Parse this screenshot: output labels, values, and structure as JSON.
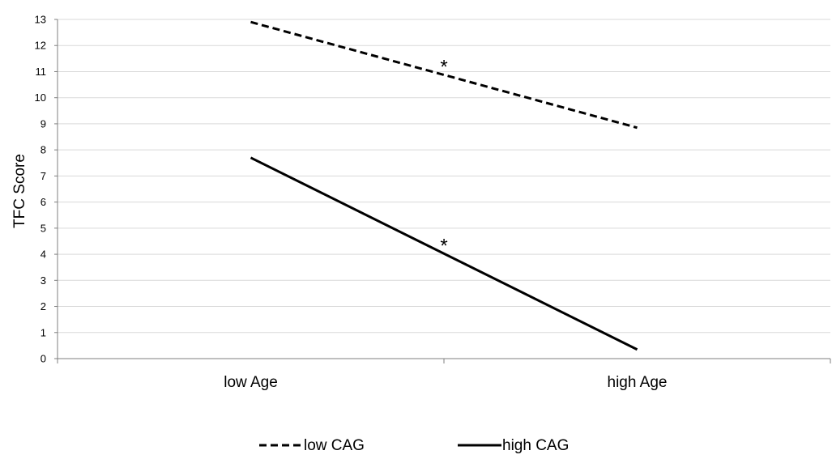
{
  "chart_data": {
    "type": "line",
    "title": "",
    "xlabel": "",
    "ylabel": "TFC Score",
    "categories": [
      "low Age",
      "high Age"
    ],
    "ylim": [
      0,
      13
    ],
    "yticks": [
      0,
      1,
      2,
      3,
      4,
      5,
      6,
      7,
      8,
      9,
      10,
      11,
      12,
      13
    ],
    "grid": true,
    "legend_position": "bottom",
    "series": [
      {
        "name": "low CAG",
        "values": [
          12.9,
          8.85
        ],
        "line_style": "dashed",
        "color": "#000000"
      },
      {
        "name": "high CAG",
        "values": [
          7.7,
          0.35
        ],
        "line_style": "solid",
        "color": "#000000"
      }
    ],
    "annotations": [
      {
        "text": "*",
        "series": "low CAG"
      },
      {
        "text": "*",
        "series": "high CAG"
      }
    ]
  }
}
